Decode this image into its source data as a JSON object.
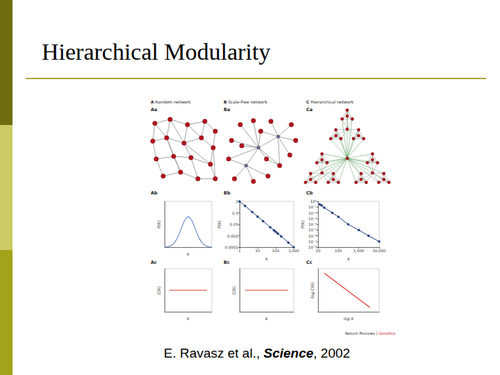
{
  "slide": {
    "title": "Hierarchical Modularity",
    "citation": {
      "before": "E. Ravasz et al.,",
      "journal": "Science",
      "after": ", 2002"
    }
  },
  "figure": {
    "columns": [
      {
        "letter": "A",
        "title": "Random network"
      },
      {
        "letter": "B",
        "title": "Scale-free network"
      },
      {
        "letter": "C",
        "title": "Hierarchical network"
      }
    ],
    "credit": [
      "Nature Reviews",
      "|",
      "Genetics"
    ]
  },
  "networks": [
    {
      "label": "Aa",
      "type": "random"
    },
    {
      "label": "Ba",
      "type": "scale-free"
    },
    {
      "label": "Ca",
      "type": "hierarchical"
    }
  ],
  "chart_data": [
    {
      "label": "Ab",
      "type": "line",
      "xlabel": "k",
      "ylabel": "P(k)",
      "color": "#6f8fc8",
      "tick_labels": false,
      "xlim": [
        0,
        20
      ],
      "ylim": [
        0,
        0.2
      ],
      "x": [
        0,
        1,
        2,
        3,
        4,
        5,
        6,
        7,
        8,
        9,
        10,
        11,
        12,
        13,
        14,
        15,
        16,
        17,
        18,
        19,
        20
      ],
      "values": [
        0.0005,
        0.001,
        0.004,
        0.009,
        0.018,
        0.033,
        0.054,
        0.08,
        0.106,
        0.125,
        0.133,
        0.125,
        0.106,
        0.08,
        0.054,
        0.033,
        0.018,
        0.009,
        0.004,
        0.001,
        0.0005
      ]
    },
    {
      "label": "Bb",
      "type": "line",
      "marker": "circle",
      "log": true,
      "xlabel": "k",
      "ylabel": "P(k)",
      "color": "#1f3f7a",
      "xlim": [
        1,
        1000
      ],
      "xticks": [
        1,
        10,
        100,
        {
          "value": 1000,
          "label": "1,000"
        }
      ],
      "ylim": [
        0.0001,
        1
      ],
      "yticks": [
        1,
        0.1,
        0.01,
        0.001,
        0.0001
      ],
      "x": [
        1,
        2,
        5,
        10,
        20,
        50,
        80,
        100,
        130,
        200,
        500,
        1000
      ],
      "values": [
        1,
        0.4,
        0.12,
        0.047,
        0.019,
        0.0055,
        0.003,
        0.0022,
        0.0016,
        0.0009,
        0.00026,
        0.0001
      ]
    },
    {
      "label": "Cb",
      "type": "line",
      "marker": "circle",
      "log": true,
      "xlabel": "k",
      "ylabel": "P(k)",
      "color": "#1f3f7a",
      "xlim": [
        10,
        10000
      ],
      "xticks": [
        10,
        100,
        {
          "value": 1000,
          "label": "1,000"
        },
        {
          "value": 10000,
          "label": "10,000"
        }
      ],
      "ylim": [
        1e-08,
        1
      ],
      "yticks": [
        {
          "value": 1,
          "label": "10⁰"
        },
        {
          "value": 0.1,
          "label": "10⁻¹"
        },
        {
          "value": 0.01,
          "label": "10⁻²"
        },
        {
          "value": 0.001,
          "label": "10⁻³"
        },
        {
          "value": 0.0001,
          "label": "10⁻⁴"
        },
        {
          "value": 1e-05,
          "label": "10⁻⁵"
        },
        {
          "value": 1e-06,
          "label": "10⁻⁶"
        },
        {
          "value": 1e-07,
          "label": "10⁻⁷"
        },
        {
          "value": 1e-08,
          "label": "10⁻⁸"
        }
      ],
      "x": [
        12,
        15,
        20,
        50,
        100,
        300,
        1000,
        3000,
        10000
      ],
      "values": [
        0.3,
        0.2,
        0.08,
        0.01,
        0.002,
        0.0001,
        1e-05,
        1e-06,
        1e-07
      ]
    },
    {
      "label": "Ac",
      "type": "line",
      "xlabel": "k",
      "ylabel": "C(k)",
      "color": "#d9342b",
      "tick_labels": false,
      "xlim": [
        0,
        1
      ],
      "ylim": [
        0,
        1
      ],
      "x": [
        0.1,
        0.9
      ],
      "values": [
        0.5,
        0.5
      ]
    },
    {
      "label": "Bc",
      "type": "line",
      "xlabel": "k",
      "ylabel": "C(k)",
      "color": "#d9342b",
      "tick_labels": false,
      "xlim": [
        0,
        1
      ],
      "ylim": [
        0,
        1
      ],
      "x": [
        0.1,
        0.9
      ],
      "values": [
        0.5,
        0.5
      ]
    },
    {
      "label": "Cc",
      "type": "line",
      "xlabel": "log k",
      "ylabel": "log C(k)",
      "color": "#d9342b",
      "tick_labels": false,
      "xlim": [
        0,
        1
      ],
      "ylim": [
        0,
        1
      ],
      "x": [
        0.1,
        0.85
      ],
      "values": [
        0.9,
        0.1
      ]
    }
  ]
}
